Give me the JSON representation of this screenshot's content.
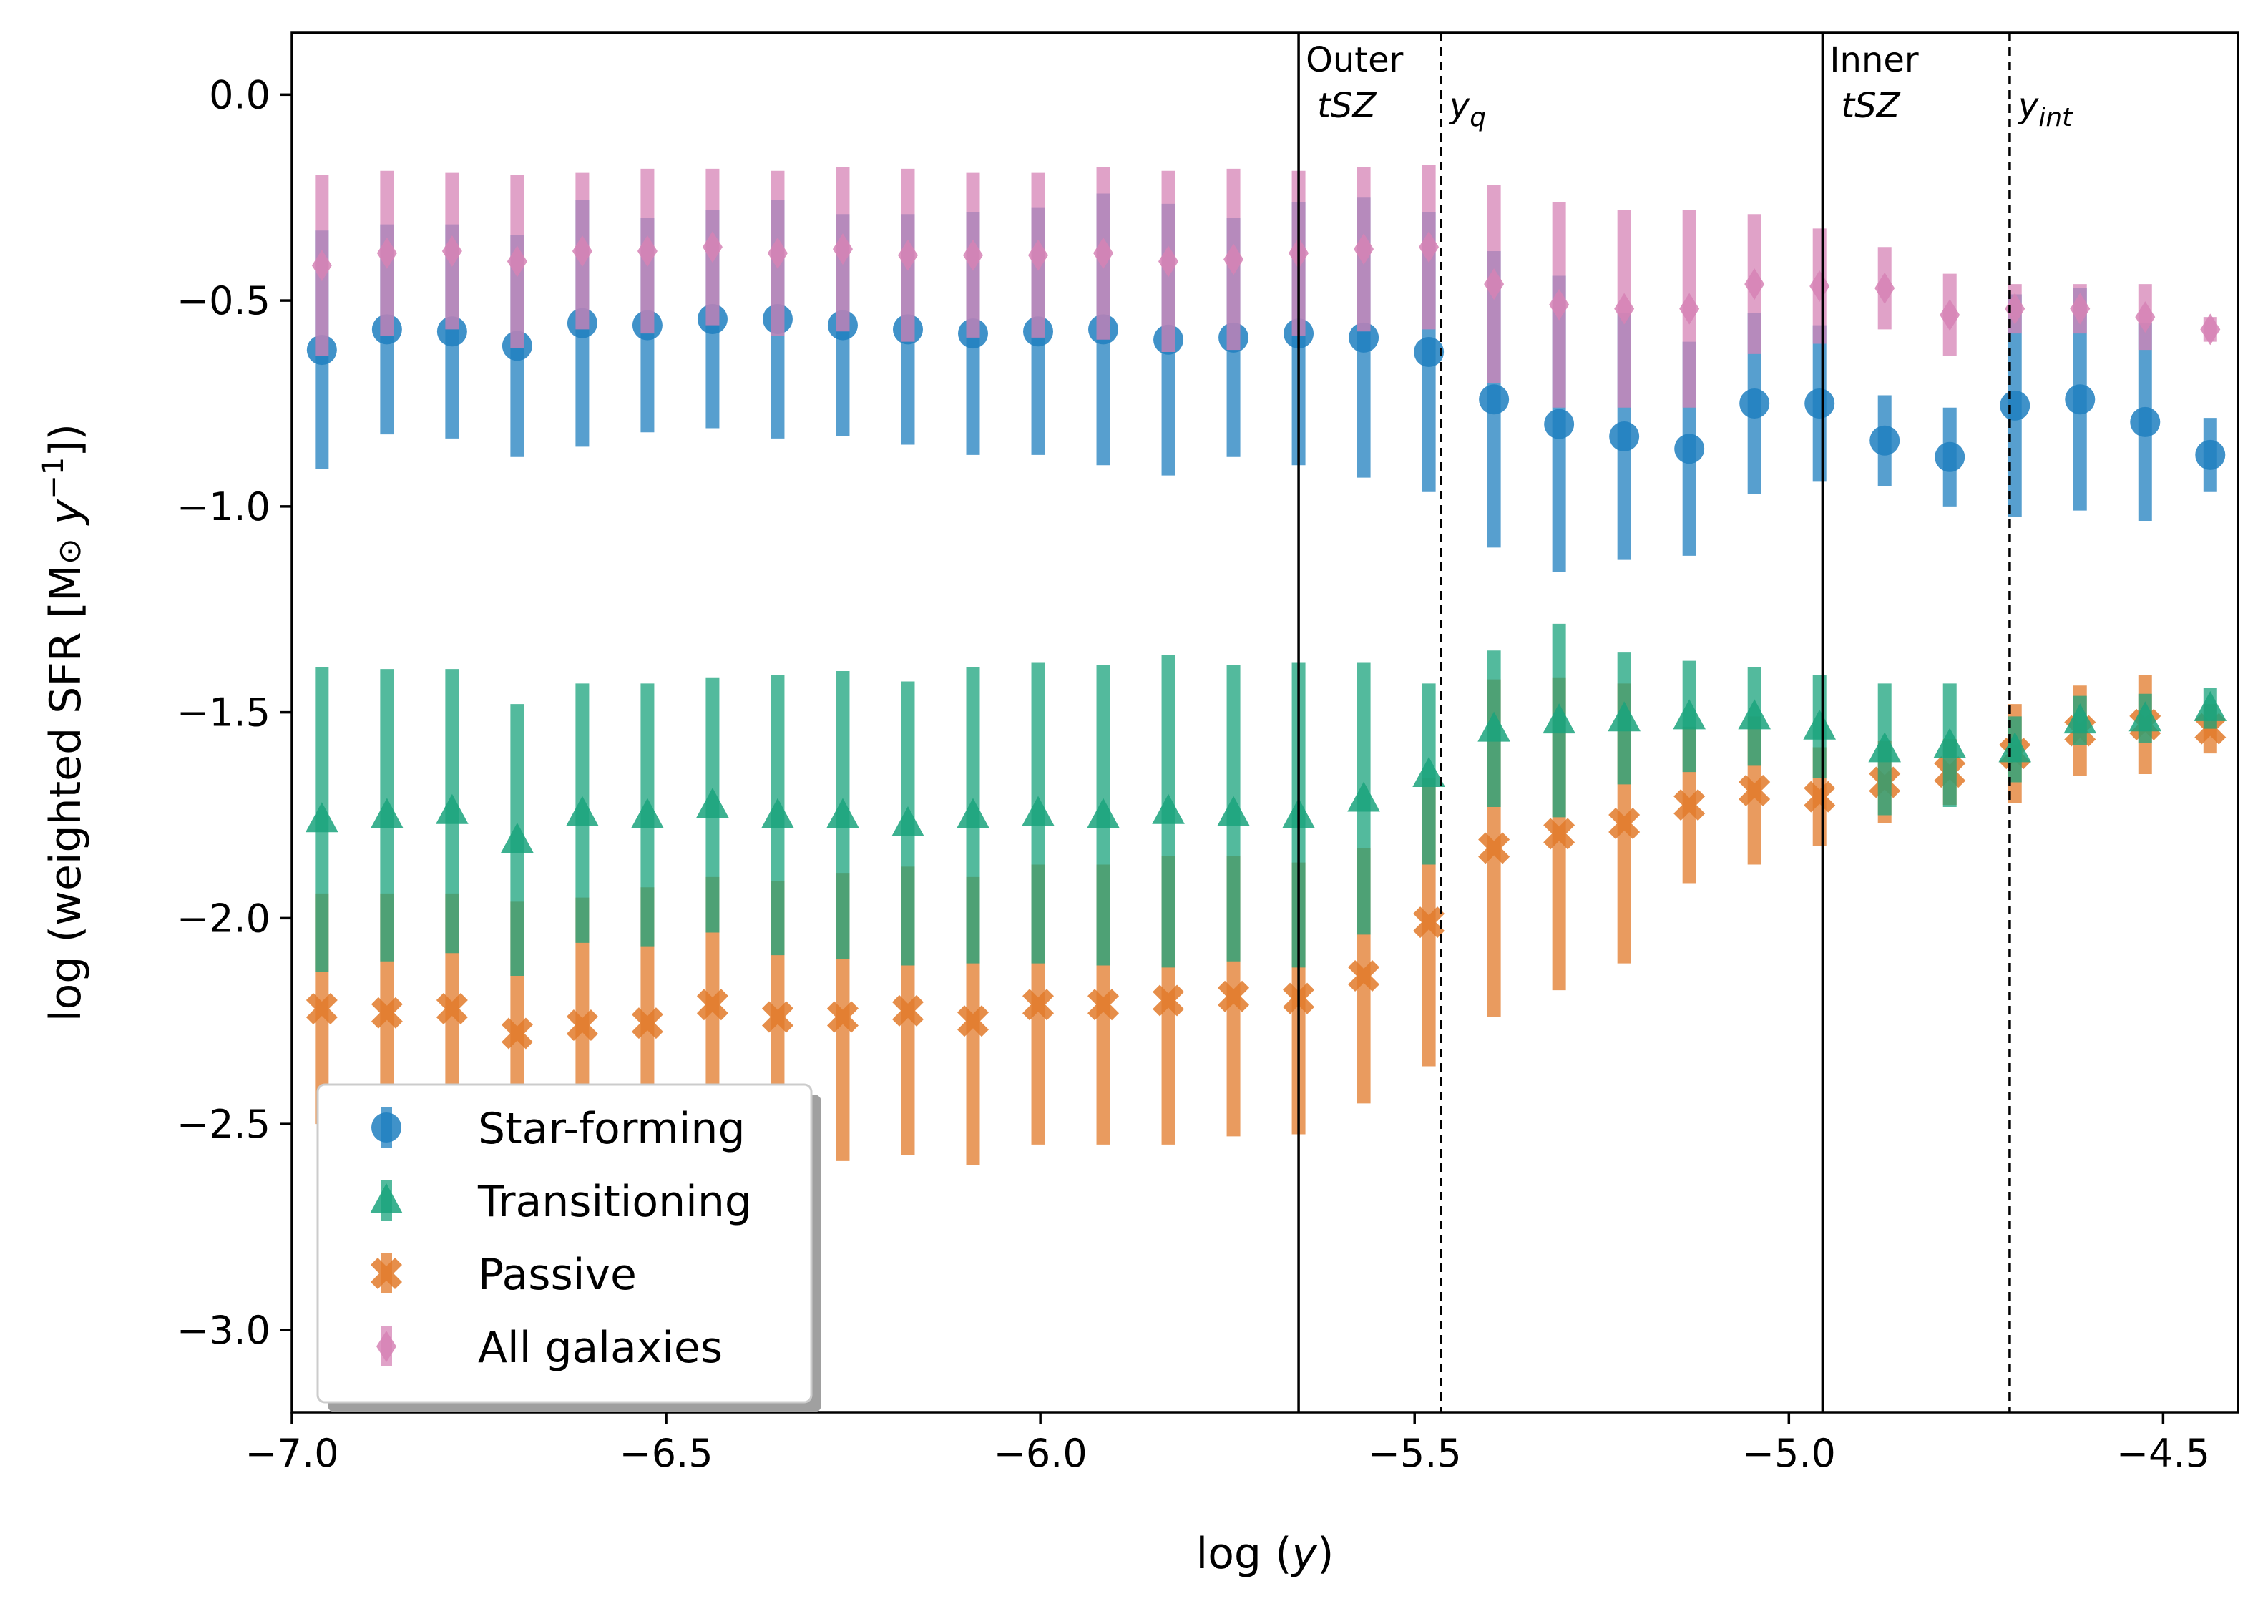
{
  "chart_data": {
    "type": "scatter",
    "title": "",
    "xlabel": "log (y)",
    "ylabel": "log (weighted SFR [M⊙ y⁻¹])",
    "xlim": [
      -7.0,
      -4.4
    ],
    "ylim": [
      -3.2,
      0.15
    ],
    "x_ticks": [
      -7.0,
      -6.5,
      -6.0,
      -5.5,
      -5.0,
      -4.5
    ],
    "x_tick_labels": [
      "−7.0",
      "−6.5",
      "−6.0",
      "−5.5",
      "−5.0",
      "−4.5"
    ],
    "y_ticks": [
      0.0,
      -0.5,
      -1.0,
      -1.5,
      -2.0,
      -2.5,
      -3.0
    ],
    "y_tick_labels": [
      "0.0",
      "−0.5",
      "−1.0",
      "−1.5",
      "−2.0",
      "−2.5",
      "−3.0"
    ],
    "x": [
      -6.96,
      -6.873,
      -6.786,
      -6.699,
      -6.612,
      -6.525,
      -6.438,
      -6.351,
      -6.264,
      -6.177,
      -6.09,
      -6.003,
      -5.916,
      -5.829,
      -5.742,
      -5.655,
      -5.568,
      -5.481,
      -5.394,
      -5.307,
      -5.22,
      -5.133,
      -5.046,
      -4.959,
      -4.872,
      -4.785,
      -4.698,
      -4.611,
      -4.524,
      -4.437
    ],
    "series": [
      {
        "name": "Star-forming",
        "color": "#1f7fbf",
        "marker": "circle",
        "values": [
          -0.62,
          -0.57,
          -0.575,
          -0.61,
          -0.555,
          -0.56,
          -0.545,
          -0.545,
          -0.56,
          -0.57,
          -0.58,
          -0.575,
          -0.57,
          -0.595,
          -0.59,
          -0.58,
          -0.59,
          -0.625,
          -0.74,
          -0.8,
          -0.83,
          -0.86,
          -0.75,
          -0.75,
          -0.84,
          -0.88,
          -0.755,
          -0.74,
          -0.795,
          -0.875
        ],
        "err": [
          0.29,
          0.255,
          0.26,
          0.27,
          0.3,
          0.26,
          0.265,
          0.29,
          0.27,
          0.28,
          0.295,
          0.3,
          0.33,
          0.33,
          0.29,
          0.32,
          0.34,
          0.34,
          0.36,
          0.36,
          0.3,
          0.26,
          0.22,
          0.19,
          0.11,
          0.12,
          0.27,
          0.27,
          0.24,
          0.09
        ]
      },
      {
        "name": "Transitioning",
        "color": "#1aa37c",
        "marker": "triangle",
        "values": [
          -1.76,
          -1.75,
          -1.74,
          -1.81,
          -1.745,
          -1.75,
          -1.725,
          -1.75,
          -1.75,
          -1.77,
          -1.75,
          -1.745,
          -1.75,
          -1.74,
          -1.745,
          -1.75,
          -1.71,
          -1.65,
          -1.54,
          -1.52,
          -1.515,
          -1.51,
          -1.51,
          -1.535,
          -1.59,
          -1.58,
          -1.59,
          -1.52,
          -1.515,
          -1.49
        ],
        "err": [
          0.37,
          0.355,
          0.345,
          0.33,
          0.315,
          0.32,
          0.31,
          0.34,
          0.35,
          0.345,
          0.36,
          0.365,
          0.365,
          0.38,
          0.36,
          0.37,
          0.33,
          0.22,
          0.19,
          0.235,
          0.16,
          0.135,
          0.12,
          0.125,
          0.16,
          0.15,
          0.08,
          0.06,
          0.06,
          0.05
        ]
      },
      {
        "name": "Passive",
        "color": "#e27a2a",
        "marker": "x",
        "values": [
          -2.22,
          -2.23,
          -2.22,
          -2.28,
          -2.26,
          -2.255,
          -2.21,
          -2.24,
          -2.24,
          -2.225,
          -2.25,
          -2.21,
          -2.21,
          -2.2,
          -2.19,
          -2.195,
          -2.14,
          -2.01,
          -1.83,
          -1.795,
          -1.77,
          -1.725,
          -1.69,
          -1.705,
          -1.67,
          -1.645,
          -1.6,
          -1.545,
          -1.53,
          -1.54
        ],
        "err": [
          0.28,
          0.29,
          0.28,
          0.32,
          0.31,
          0.33,
          0.31,
          0.33,
          0.35,
          0.35,
          0.35,
          0.34,
          0.34,
          0.35,
          0.34,
          0.33,
          0.31,
          0.35,
          0.41,
          0.38,
          0.34,
          0.19,
          0.18,
          0.12,
          0.1,
          0.08,
          0.12,
          0.11,
          0.12,
          0.06
        ]
      },
      {
        "name": "All galaxies",
        "color": "#d683b5",
        "marker": "diamond",
        "values": [
          -0.415,
          -0.385,
          -0.38,
          -0.405,
          -0.38,
          -0.38,
          -0.37,
          -0.385,
          -0.375,
          -0.39,
          -0.39,
          -0.39,
          -0.385,
          -0.405,
          -0.4,
          -0.385,
          -0.375,
          -0.37,
          -0.46,
          -0.51,
          -0.52,
          -0.52,
          -0.46,
          -0.465,
          -0.47,
          -0.535,
          -0.52,
          -0.52,
          -0.54,
          -0.57
        ],
        "err": [
          0.22,
          0.2,
          0.19,
          0.21,
          0.19,
          0.2,
          0.19,
          0.2,
          0.2,
          0.21,
          0.2,
          0.2,
          0.21,
          0.22,
          0.22,
          0.2,
          0.2,
          0.2,
          0.24,
          0.25,
          0.24,
          0.24,
          0.17,
          0.14,
          0.1,
          0.1,
          0.06,
          0.06,
          0.08,
          0.03
        ]
      }
    ],
    "vertical_lines": [
      {
        "x": -5.655,
        "style": "solid",
        "label_line1": "Outer",
        "label_line2": "tSZ"
      },
      {
        "x": -5.465,
        "style": "dashed",
        "label_sym": "y",
        "label_sub": "q"
      },
      {
        "x": -4.955,
        "style": "solid",
        "label_line1": "Inner",
        "label_line2": "tSZ"
      },
      {
        "x": -4.705,
        "style": "dashed",
        "label_sym": "y",
        "label_sub": "int"
      }
    ],
    "legend_position": "lower-left"
  }
}
